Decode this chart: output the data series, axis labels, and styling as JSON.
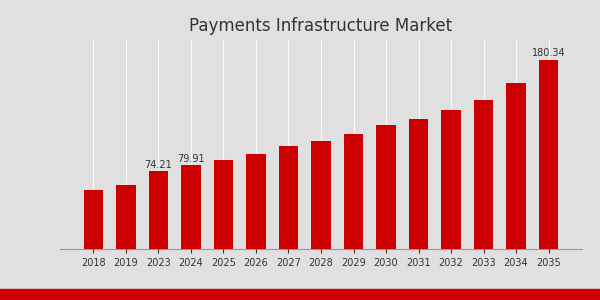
{
  "title": "Payments Infrastructure Market",
  "background_color": "#e0e0e0",
  "bar_color": "#cc0000",
  "categories": [
    "2018",
    "2019",
    "2023",
    "2024",
    "2025",
    "2026",
    "2027",
    "2028",
    "2029",
    "2030",
    "2031",
    "2032",
    "2033",
    "2034",
    "2035"
  ],
  "values": [
    56.0,
    60.5,
    74.21,
    79.91,
    84.5,
    90.5,
    98.0,
    102.5,
    110.0,
    118.0,
    124.0,
    132.0,
    142.0,
    158.0,
    180.34
  ],
  "labeled_bars": {
    "2023": "74.21",
    "2024": "79.91",
    "2035": "180.34"
  },
  "title_fontsize": 12,
  "ylabel_fontsize": 8,
  "tick_fontsize": 7,
  "annotation_fontsize": 7,
  "ylim": [
    0,
    200
  ],
  "grid_color": "#ffffff",
  "bottom_stripe_color": "#cc0000"
}
